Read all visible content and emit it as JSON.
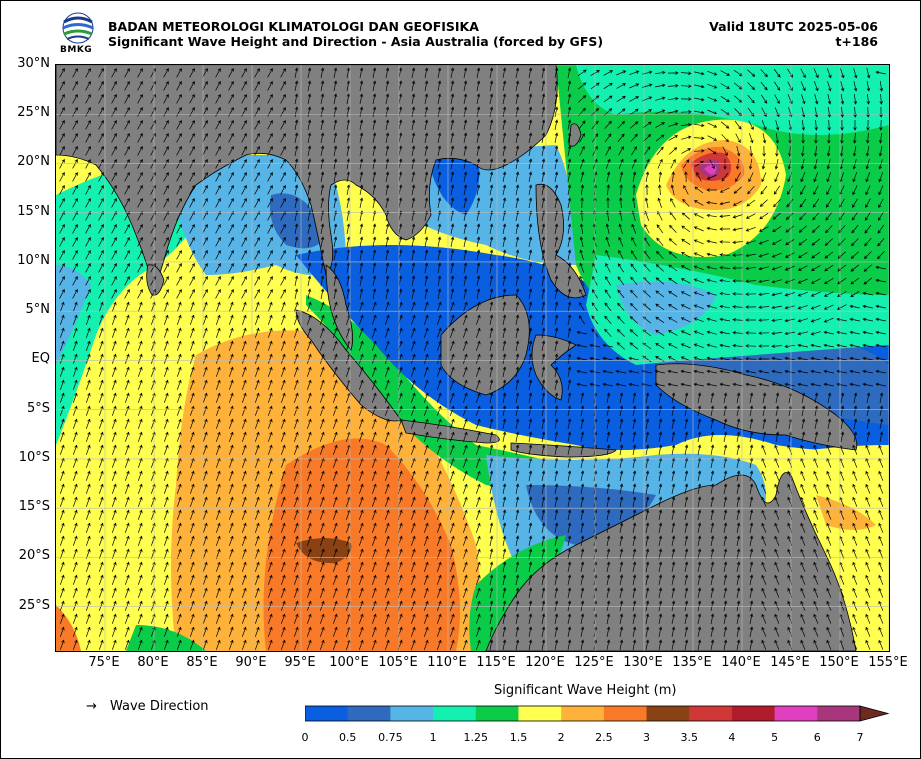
{
  "header": {
    "agency": "BADAN METEOROLOGI KLIMATOLOGI DAN GEOFISIKA",
    "product": "Significant Wave Height and Direction - Asia Australia (forced by GFS)",
    "valid": "Valid 18UTC 2025-05-06",
    "lead": "t+186",
    "logo_text": "BMKG"
  },
  "map": {
    "lon_range": [
      70,
      155
    ],
    "lat_range": [
      -29.5,
      30
    ],
    "lat_ticks": [
      "30°N",
      "25°N",
      "20°N",
      "15°N",
      "10°N",
      "5°N",
      "EQ",
      "5°S",
      "10°S",
      "15°S",
      "20°S",
      "25°S"
    ],
    "lon_ticks": [
      "75°E",
      "80°E",
      "85°E",
      "90°E",
      "95°E",
      "100°E",
      "105°E",
      "110°E",
      "115°E",
      "120°E",
      "125°E",
      "130°E",
      "135°E",
      "140°E",
      "145°E",
      "150°E",
      "155°E"
    ],
    "land_color": "#808080",
    "grid": true
  },
  "legend": {
    "arrow_glyph": "→",
    "arrow_label": "Wave Direction"
  },
  "colorbar": {
    "title": "Significant Wave Height (m)",
    "ticks": [
      "0",
      "0.5",
      "0.75",
      "1",
      "1.25",
      "1.5",
      "2",
      "2.5",
      "3",
      "3.5",
      "4",
      "5",
      "6",
      "7"
    ],
    "colors": [
      "#0a5ee0",
      "#2e6bbf",
      "#56b4e6",
      "#14f0b0",
      "#0acc48",
      "#ffff50",
      "#ffb23a",
      "#f87a28",
      "#8a4214",
      "#d03838",
      "#b01c2c",
      "#e040c0",
      "#a8367c"
    ],
    "extend_color": "#6e2a20"
  }
}
